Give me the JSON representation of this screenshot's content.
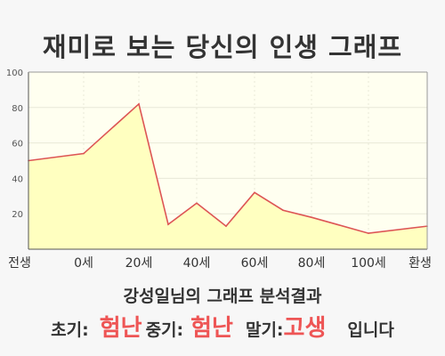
{
  "title": "재미로 보는 당신의 인생 그래프",
  "summary_title": "강성일님의 그래프 분석결과",
  "result": {
    "early_label": "초기:",
    "early_value": "험난",
    "middle_label": "중기:",
    "middle_value": "험난",
    "late_label": "말기:",
    "late_value": "고생",
    "ending": "입니다"
  },
  "colors": {
    "line": "#dd5555",
    "fill": "#ffffc0",
    "plot_bg": "#fffff0",
    "grid": "#e8e8d8",
    "highlight": "#ee5555"
  },
  "chart_data": {
    "type": "area",
    "title": "재미로 보는 당신의 인생 그래프",
    "xlabel": "",
    "ylabel": "",
    "x_tick_labels": [
      "전생",
      "0세",
      "20세",
      "40세",
      "60세",
      "80세",
      "100세",
      "환생"
    ],
    "y_ticks": [
      20,
      40,
      60,
      80,
      100
    ],
    "ylim": [
      0,
      100
    ],
    "grid": true,
    "series": [
      {
        "points": [
          {
            "x": "전생",
            "y": 50
          },
          {
            "x": "0세",
            "y": 54
          },
          {
            "x": "20세",
            "y": 82
          },
          {
            "x": "30세",
            "y": 14
          },
          {
            "x": "40세",
            "y": 26
          },
          {
            "x": "50세",
            "y": 13
          },
          {
            "x": "60세",
            "y": 32
          },
          {
            "x": "70세",
            "y": 22
          },
          {
            "x": "80세",
            "y": 18
          },
          {
            "x": "100세",
            "y": 9
          },
          {
            "x": "환생",
            "y": 13
          }
        ]
      }
    ]
  }
}
